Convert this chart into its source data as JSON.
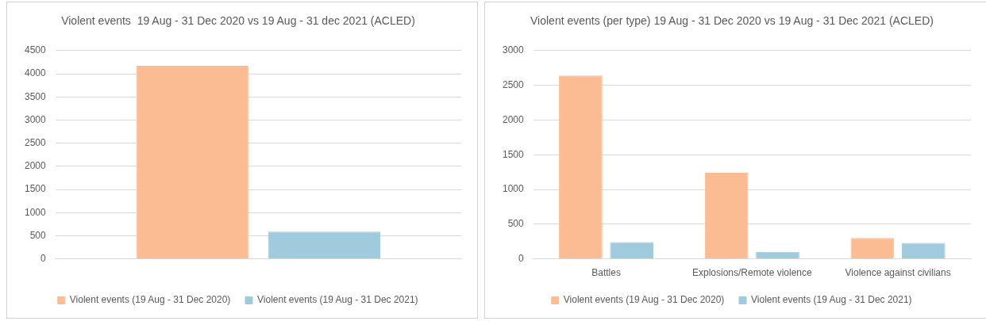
{
  "chart_data": [
    {
      "type": "bar",
      "title": "Violent events  19 Aug - 31 Dec 2020 vs 19 Aug - 31 dec 2021 (ACLED)",
      "categories": [
        null
      ],
      "series": [
        {
          "name": "Violent events (19 Aug - 31 Dec 2020)",
          "color": "#fbbb93",
          "values": [
            4170
          ]
        },
        {
          "name": "Violent events (19 Aug - 31 Dec 2021)",
          "color": "#9fcbdc",
          "values": [
            590
          ]
        }
      ],
      "ylim": [
        0,
        4500
      ],
      "yticks": [
        0,
        500,
        1000,
        1500,
        2000,
        2500,
        3000,
        3500,
        4000,
        4500
      ],
      "grid": "y",
      "legend": "bottom"
    },
    {
      "type": "bar",
      "title": "Violent events (per type) 19 Aug - 31 Dec 2020 vs 19 Aug - 31 Dec 2021 (ACLED)",
      "categories": [
        "Battles",
        "Explosions/Remote violence",
        "Violence against civilians"
      ],
      "series": [
        {
          "name": "Violent events (19 Aug - 31 Dec 2020)",
          "color": "#fbbb93",
          "values": [
            2640,
            1240,
            300
          ]
        },
        {
          "name": "Violent events (19 Aug - 31 Dec 2021)",
          "color": "#9fcbdc",
          "values": [
            240,
            100,
            230
          ]
        }
      ],
      "ylim": [
        0,
        3000
      ],
      "yticks": [
        0,
        500,
        1000,
        1500,
        2000,
        2500,
        3000
      ],
      "grid": "y",
      "legend": "bottom"
    }
  ]
}
